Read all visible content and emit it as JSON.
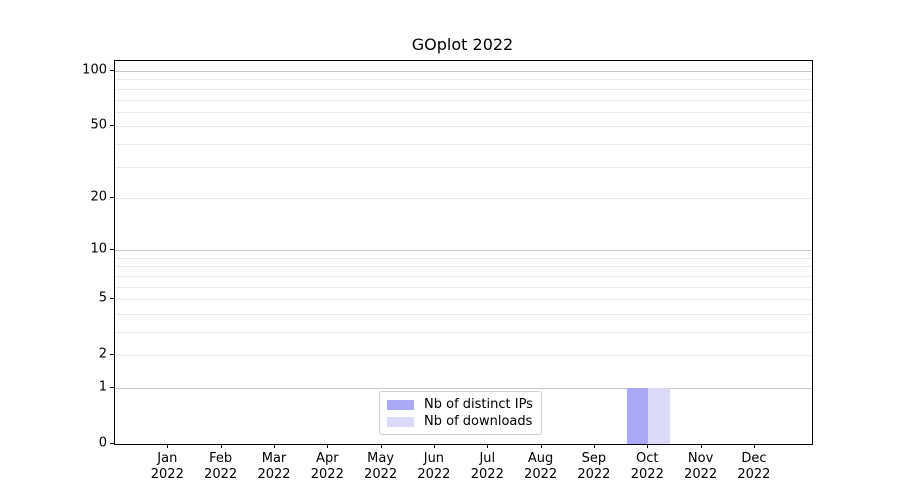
{
  "chart_data": {
    "type": "bar",
    "title": "GOplot 2022",
    "categories": [
      "Jan 2022",
      "Feb 2022",
      "Mar 2022",
      "Apr 2022",
      "May 2022",
      "Jun 2022",
      "Jul 2022",
      "Aug 2022",
      "Sep 2022",
      "Oct 2022",
      "Nov 2022",
      "Dec 2022"
    ],
    "series": [
      {
        "name": "Nb of distinct IPs",
        "color": "#a9a9f7",
        "values": [
          0,
          0,
          0,
          0,
          0,
          0,
          0,
          0,
          0,
          1,
          0,
          0
        ]
      },
      {
        "name": "Nb of downloads",
        "color": "#dbdbf9",
        "values": [
          0,
          0,
          0,
          0,
          0,
          0,
          0,
          0,
          0,
          1,
          0,
          0
        ]
      }
    ],
    "xlabel": "",
    "ylabel": "",
    "yscale": "log1p",
    "ylim": [
      0,
      113
    ],
    "y_tick_values": [
      0,
      1,
      2,
      5,
      10,
      20,
      50,
      100
    ],
    "y_tick_labels": [
      "0",
      "1",
      "2",
      "5",
      "10",
      "20",
      "50",
      "100"
    ],
    "y_major_gridlines": [
      1,
      10,
      100
    ],
    "y_minor_gridlines": [
      2,
      3,
      4,
      5,
      6,
      7,
      8,
      9,
      20,
      30,
      40,
      50,
      60,
      70,
      80,
      90
    ],
    "grid": true,
    "legend_position": "lower center inside",
    "colors": {
      "grid_major": "#c9c9c9",
      "grid_minor": "#ececec",
      "axis": "#000000",
      "text": "#000000",
      "background": "#ffffff"
    }
  }
}
